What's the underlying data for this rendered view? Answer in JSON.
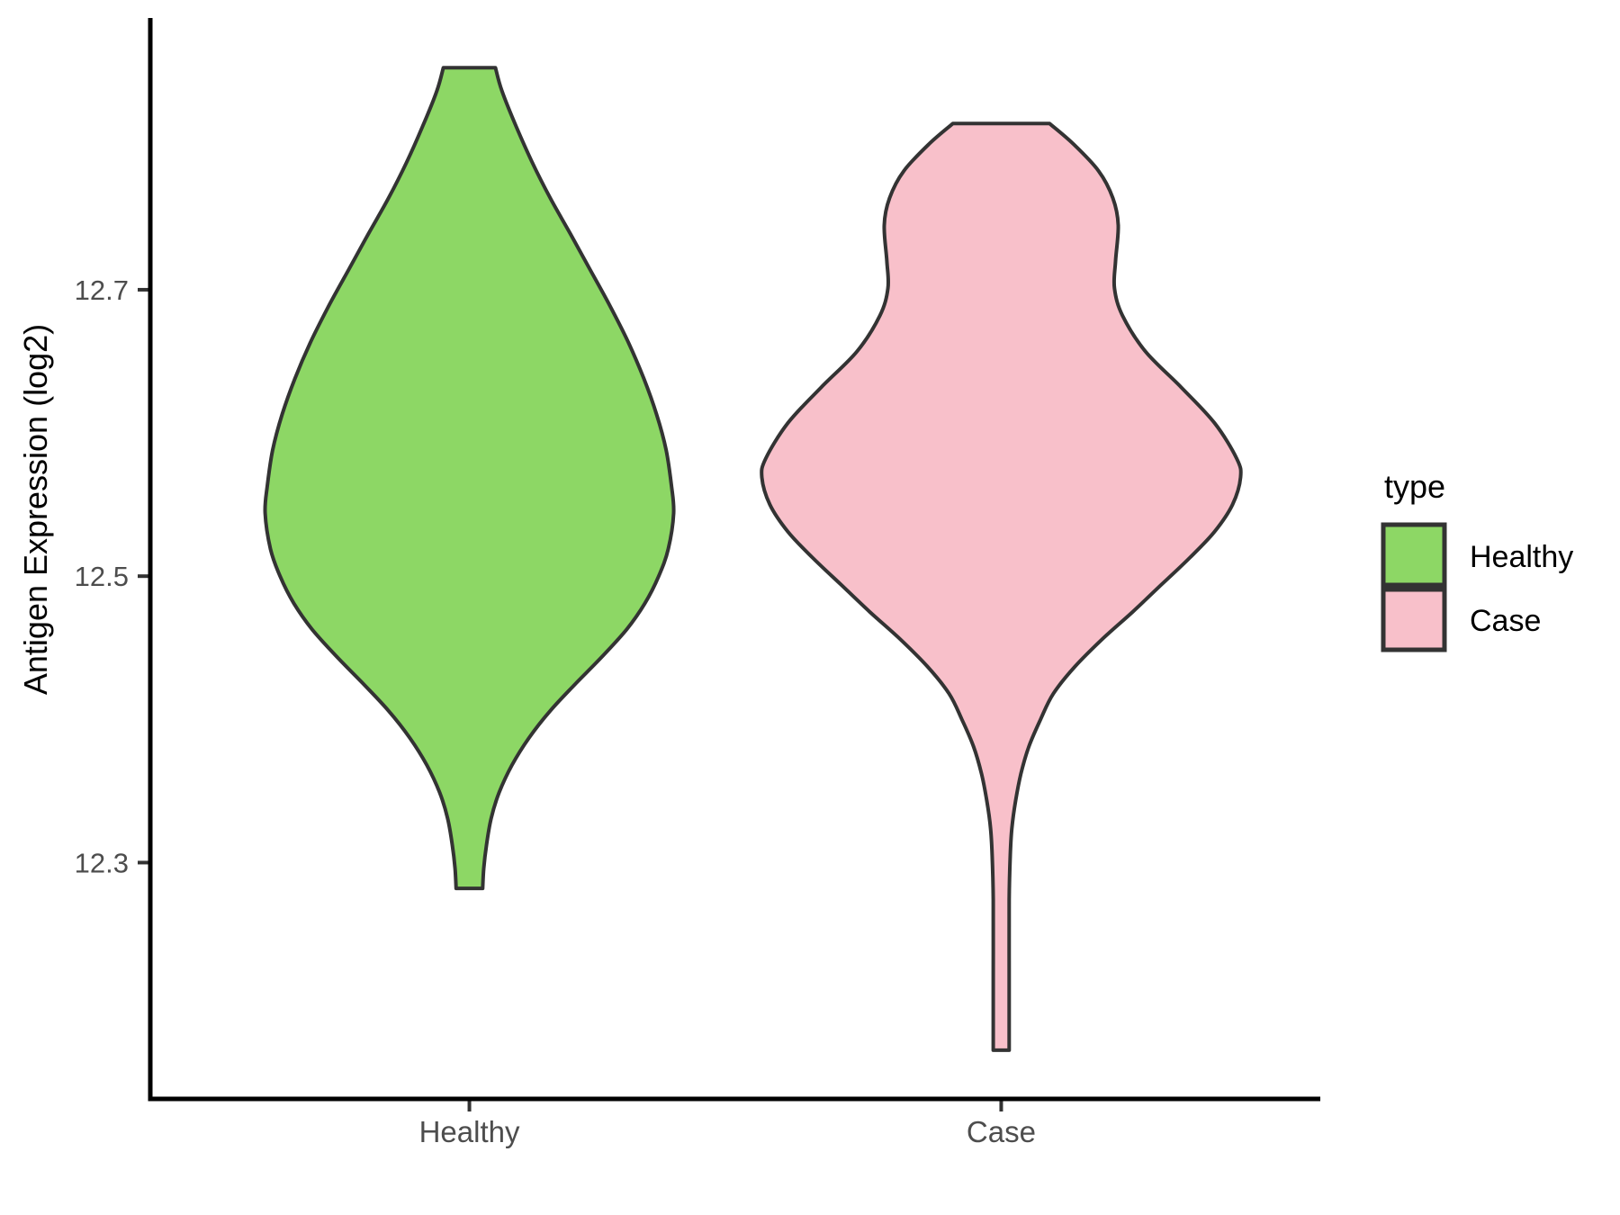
{
  "chart_data": {
    "type": "violin",
    "title": "",
    "xlabel": "",
    "ylabel": "Antigen Expression (log2)",
    "categories": [
      "Healthy",
      "Case"
    ],
    "y_axis": {
      "ticks": [
        "12.3",
        "12.5",
        "12.7"
      ],
      "tick_values": [
        12.3,
        12.5,
        12.7
      ],
      "range": [
        12.135,
        12.891
      ]
    },
    "x_axis": {
      "positions": [
        1,
        2
      ],
      "range": [
        0.4,
        2.6
      ]
    },
    "grid": "off",
    "legend": {
      "title": "type",
      "position": "right",
      "entries": [
        {
          "label": "Healthy",
          "color": "#8dd765"
        },
        {
          "label": "Case",
          "color": "#f8c0ca"
        }
      ]
    },
    "outline_color": "#333333",
    "axis_color": "#000000",
    "tick_text_color": "#4d4d4d",
    "series": [
      {
        "name": "Healthy",
        "fill": "#8dd765",
        "center": 1,
        "peak_value": 12.55,
        "profile": [
          [
            12.855,
            0.049
          ],
          [
            12.839,
            0.061
          ],
          [
            12.814,
            0.088
          ],
          [
            12.789,
            0.118
          ],
          [
            12.764,
            0.152
          ],
          [
            12.739,
            0.19
          ],
          [
            12.714,
            0.227
          ],
          [
            12.689,
            0.264
          ],
          [
            12.664,
            0.298
          ],
          [
            12.638,
            0.328
          ],
          [
            12.613,
            0.352
          ],
          [
            12.588,
            0.37
          ],
          [
            12.563,
            0.38
          ],
          [
            12.544,
            0.384
          ],
          [
            12.519,
            0.374
          ],
          [
            12.5,
            0.356
          ],
          [
            12.481,
            0.33
          ],
          [
            12.463,
            0.296
          ],
          [
            12.444,
            0.25
          ],
          [
            12.425,
            0.2
          ],
          [
            12.406,
            0.152
          ],
          [
            12.387,
            0.112
          ],
          [
            12.368,
            0.08
          ],
          [
            12.349,
            0.056
          ],
          [
            12.331,
            0.041
          ],
          [
            12.312,
            0.032
          ],
          [
            12.296,
            0.027
          ],
          [
            12.282,
            0.025
          ]
        ]
      },
      {
        "name": "Case",
        "fill": "#f8c0ca",
        "center": 2,
        "peak_value": 12.57,
        "profile": [
          [
            12.816,
            0.091
          ],
          [
            12.802,
            0.135
          ],
          [
            12.783,
            0.183
          ],
          [
            12.764,
            0.21
          ],
          [
            12.745,
            0.22
          ],
          [
            12.72,
            0.215
          ],
          [
            12.701,
            0.213
          ],
          [
            12.682,
            0.228
          ],
          [
            12.657,
            0.271
          ],
          [
            12.632,
            0.338
          ],
          [
            12.607,
            0.401
          ],
          [
            12.582,
            0.443
          ],
          [
            12.569,
            0.45
          ],
          [
            12.55,
            0.435
          ],
          [
            12.531,
            0.401
          ],
          [
            12.513,
            0.355
          ],
          [
            12.494,
            0.301
          ],
          [
            12.475,
            0.247
          ],
          [
            12.456,
            0.19
          ],
          [
            12.437,
            0.139
          ],
          [
            12.418,
            0.098
          ],
          [
            12.4,
            0.074
          ],
          [
            12.381,
            0.052
          ],
          [
            12.362,
            0.037
          ],
          [
            12.343,
            0.027
          ],
          [
            12.324,
            0.02
          ],
          [
            12.305,
            0.017
          ],
          [
            12.274,
            0.015
          ],
          [
            12.223,
            0.015
          ],
          [
            12.169,
            0.015
          ]
        ]
      }
    ]
  }
}
